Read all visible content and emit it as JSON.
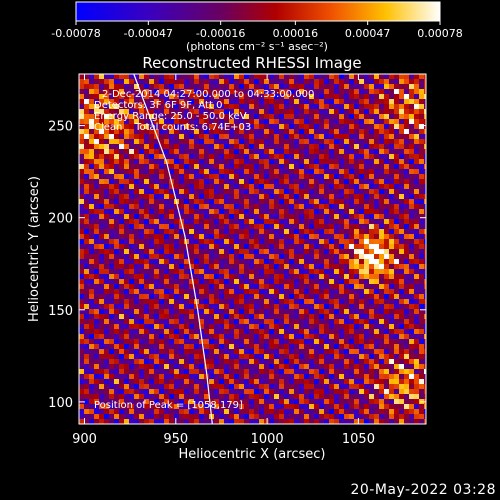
{
  "chart_data": {
    "type": "heatmap",
    "title": "Reconstructed RHESSI Image",
    "xlabel": "Heliocentric X (arcsec)",
    "ylabel": "Heliocentric Y (arcsec)",
    "xlim": [
      897,
      1087
    ],
    "ylim": [
      88,
      278
    ],
    "x_ticks": [
      900,
      950,
      1000,
      1050
    ],
    "y_ticks": [
      100,
      150,
      200,
      250
    ],
    "colorbar": {
      "label": "(photons cm⁻² s⁻¹ asec⁻²)",
      "ticks": [
        -0.00078,
        -0.00047,
        -0.00016,
        0.00016,
        0.00047,
        0.00078
      ],
      "tick_labels": [
        "-0.00078",
        "-0.00047",
        "-0.00016",
        "0.00016",
        "0.00047",
        "0.00078"
      ],
      "range": [
        -0.00078,
        0.00078
      ],
      "colormap": "blue-purple-red-yellow-white"
    },
    "annotations": [
      "2-Dec-2014 04:27:00.000 to 04:33:00.000",
      "Detectors: 3F 6F 9F, Att 0",
      "Energy Range: 25.0 - 50.0 keV",
      "Clean    Total counts: 6.74E+03"
    ],
    "peak_label": "Position of Peak = [1058,179]",
    "peak": {
      "x": 1058,
      "y": 179
    },
    "sources": [
      {
        "x": 1058,
        "y": 179
      },
      {
        "x": 905,
        "y": 248
      },
      {
        "x": 1075,
        "y": 110
      },
      {
        "x": 1080,
        "y": 260
      }
    ],
    "limb": [
      [
        927,
        278
      ],
      [
        945,
        230
      ],
      [
        955,
        190
      ],
      [
        962,
        150
      ],
      [
        967,
        115
      ],
      [
        970,
        88
      ]
    ],
    "grid": false
  },
  "timestamp": "20-May-2022 03:28",
  "colors": {
    "background": "#000000",
    "text": "#ffffff",
    "limb": "#ffffff"
  }
}
